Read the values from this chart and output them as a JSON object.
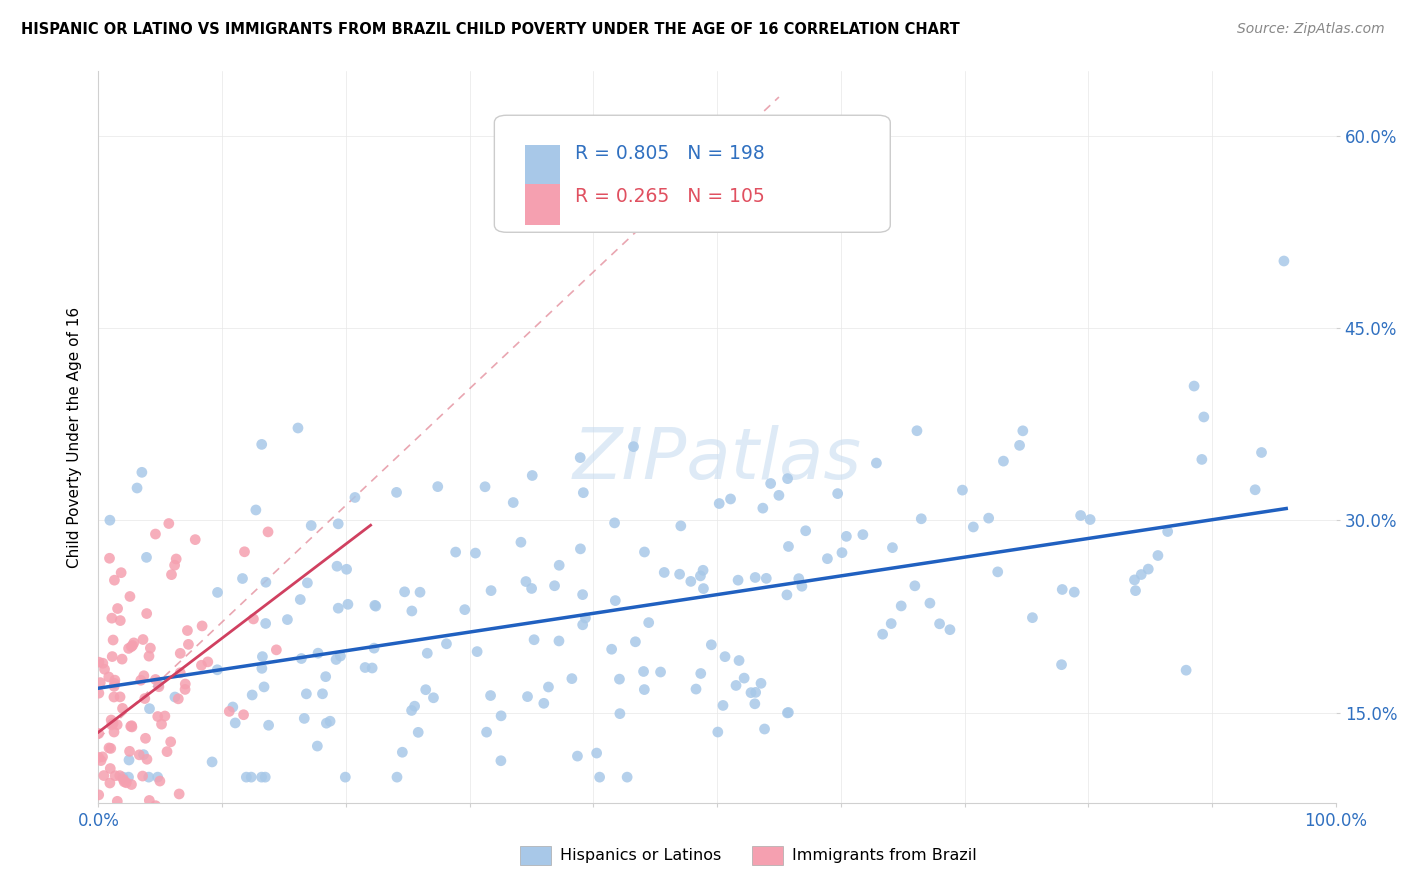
{
  "title": "HISPANIC OR LATINO VS IMMIGRANTS FROM BRAZIL CHILD POVERTY UNDER THE AGE OF 16 CORRELATION CHART",
  "source": "Source: ZipAtlas.com",
  "ylabel": "Child Poverty Under the Age of 16",
  "xlim": [
    0,
    1
  ],
  "ylim": [
    0.08,
    0.65
  ],
  "xticks": [
    0.0,
    0.1,
    0.2,
    0.3,
    0.4,
    0.5,
    0.6,
    0.7,
    0.8,
    0.9,
    1.0
  ],
  "xticklabels": [
    "0.0%",
    "",
    "",
    "",
    "",
    "",
    "",
    "",
    "",
    "",
    "100.0%"
  ],
  "yticks": [
    0.15,
    0.3,
    0.45,
    0.6
  ],
  "yticklabels": [
    "15.0%",
    "30.0%",
    "45.0%",
    "60.0%"
  ],
  "series1_R": 0.805,
  "series1_N": 198,
  "series2_R": 0.265,
  "series2_N": 105,
  "series1_color": "#a8c8e8",
  "series2_color": "#f5a0b0",
  "series1_line_color": "#2060c0",
  "trend_dashed_color": "#e08090",
  "watermark": "ZIPatlas",
  "legend1_label": "Hispanics or Latinos",
  "legend2_label": "Immigrants from Brazil",
  "seed1": 42,
  "seed2": 123
}
